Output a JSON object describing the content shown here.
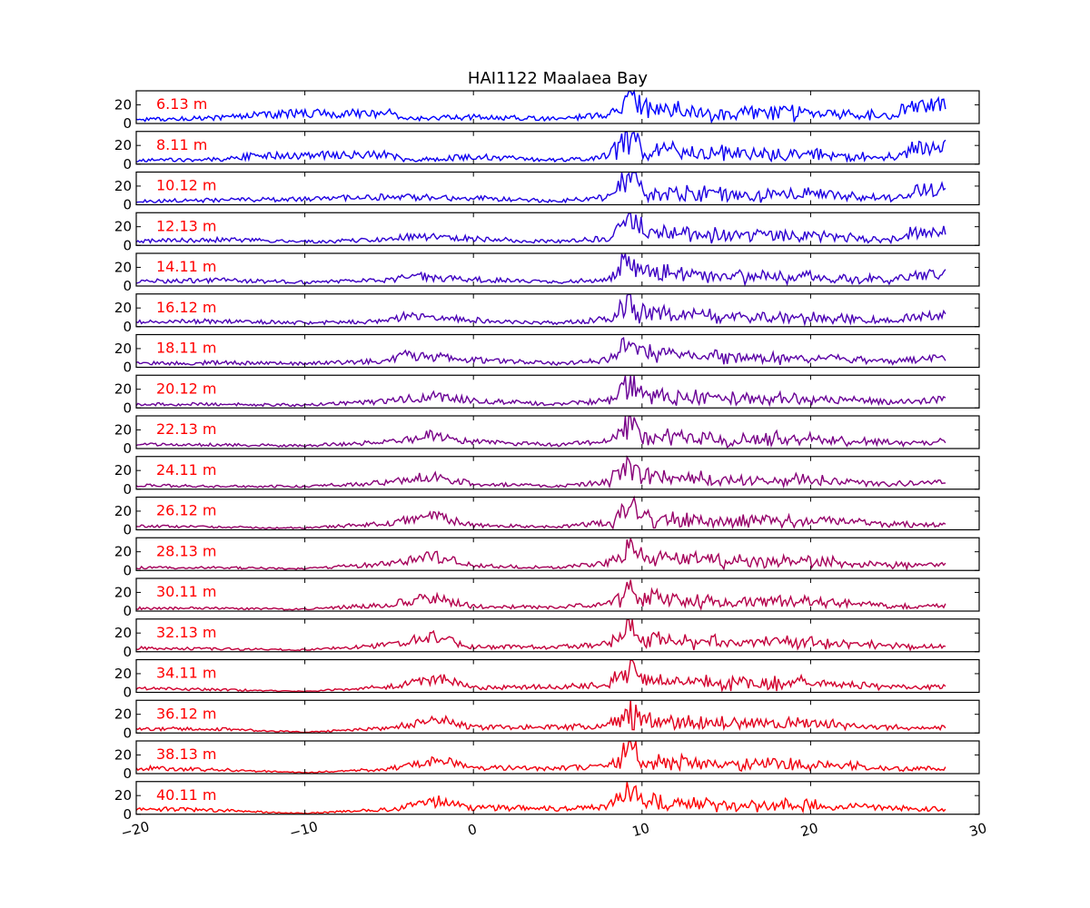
{
  "chart_data": {
    "type": "line",
    "title": "HAI1122   Maalaea Bay",
    "xlabel": "",
    "ylabel": "",
    "xlim": [
      -20,
      30
    ],
    "ylim": [
      0,
      35
    ],
    "x_ticks": [
      -20,
      -10,
      0,
      10,
      20,
      30
    ],
    "x_tick_labels": [
      "−20",
      "−10",
      "0",
      "10",
      "20",
      "30"
    ],
    "y_ticks": [
      0,
      20
    ],
    "y_tick_labels": [
      "0",
      "20"
    ],
    "x_data_range": [
      -20,
      28
    ],
    "grid": false,
    "legend": "none",
    "layout": "18 stacked panels sharing the x axis",
    "series": [
      {
        "name": "6.13 m",
        "color": "#0000ff",
        "x": [
          -20,
          -15,
          -13,
          -5,
          -4,
          0,
          5,
          8,
          9,
          9.3,
          10,
          12,
          15,
          20,
          25,
          26,
          28
        ],
        "values": [
          4,
          6,
          10,
          11,
          5,
          7,
          5,
          9,
          25,
          35,
          16,
          13,
          11,
          11,
          8,
          19,
          21
        ]
      },
      {
        "name": "8.11 m",
        "color": "#0f00f0",
        "x": [
          -20,
          -15,
          -13,
          -5,
          -4,
          0,
          5,
          8,
          9,
          9.3,
          10,
          12,
          15,
          20,
          25,
          26,
          28
        ],
        "values": [
          4,
          5,
          9,
          10,
          4,
          8,
          4,
          9,
          24,
          34,
          16,
          13,
          11,
          11,
          7,
          17,
          19
        ]
      },
      {
        "name": "10.12 m",
        "color": "#1e00e1",
        "x": [
          -20,
          -15,
          -10,
          -5,
          -4,
          0,
          5,
          8,
          9,
          9.3,
          10,
          12,
          15,
          20,
          25,
          26,
          28
        ],
        "values": [
          4,
          5,
          6,
          9,
          8,
          7,
          4,
          8,
          24,
          33,
          15,
          13,
          11,
          11,
          6,
          15,
          17
        ]
      },
      {
        "name": "12.13 m",
        "color": "#2d00d2",
        "x": [
          -20,
          -15,
          -10,
          -5,
          -4,
          0,
          5,
          8,
          9,
          9.3,
          10,
          12,
          15,
          20,
          25,
          26,
          28
        ],
        "values": [
          5,
          6,
          4,
          6,
          10,
          7,
          4,
          8,
          23,
          33,
          15,
          12,
          11,
          10,
          6,
          13,
          15
        ]
      },
      {
        "name": "14.11 m",
        "color": "#3c00c3",
        "x": [
          -20,
          -15,
          -10,
          -5,
          -4,
          0,
          5,
          8,
          9,
          9.3,
          10,
          12,
          15,
          20,
          25,
          26,
          28
        ],
        "values": [
          5,
          6,
          4,
          6,
          11,
          7,
          4,
          8,
          23,
          32,
          15,
          12,
          10,
          10,
          6,
          11,
          13
        ]
      },
      {
        "name": "16.12 m",
        "color": "#4b00b4",
        "x": [
          -20,
          -15,
          -10,
          -5,
          -4,
          0,
          5,
          8,
          9,
          9.3,
          10,
          12,
          15,
          20,
          25,
          26,
          28
        ],
        "values": [
          5,
          6,
          4,
          6,
          13,
          7,
          4,
          8,
          22,
          32,
          15,
          12,
          10,
          10,
          6,
          10,
          12
        ]
      },
      {
        "name": "18.11 m",
        "color": "#5a00a5",
        "x": [
          -20,
          -15,
          -10,
          -5,
          -4,
          0,
          5,
          8,
          9,
          9.3,
          10,
          12,
          15,
          20,
          25,
          26,
          28
        ],
        "values": [
          4,
          5,
          4,
          7,
          14,
          8,
          4,
          8,
          22,
          31,
          15,
          12,
          10,
          10,
          6,
          8,
          10
        ]
      },
      {
        "name": "20.12 m",
        "color": "#690096",
        "x": [
          -20,
          -15,
          -10,
          -5,
          -2.5,
          0,
          5,
          8,
          9,
          9.3,
          10,
          12,
          15,
          20,
          25,
          26,
          28
        ],
        "values": [
          4,
          4,
          3,
          7,
          13,
          8,
          4,
          8,
          22,
          31,
          14,
          12,
          10,
          10,
          6,
          7,
          9
        ]
      },
      {
        "name": "22.13 m",
        "color": "#780087",
        "x": [
          -20,
          -15,
          -10,
          -5,
          -2.5,
          0,
          5,
          8,
          9,
          9.3,
          10,
          12,
          15,
          20,
          25,
          26,
          28
        ],
        "values": [
          4,
          4,
          3,
          7,
          14,
          7,
          4,
          8,
          22,
          30,
          14,
          12,
          10,
          10,
          6,
          6,
          8
        ]
      },
      {
        "name": "24.11 m",
        "color": "#870078",
        "x": [
          -20,
          -15,
          -10,
          -5,
          -2.5,
          0,
          5,
          8,
          9,
          9.3,
          10,
          12,
          15,
          20,
          25,
          26,
          28
        ],
        "values": [
          4,
          3,
          3,
          7,
          14,
          6,
          3,
          8,
          21,
          30,
          14,
          12,
          10,
          10,
          6,
          6,
          7
        ]
      },
      {
        "name": "26.12 m",
        "color": "#960069",
        "x": [
          -20,
          -15,
          -10,
          -5,
          -2.5,
          0,
          5,
          8,
          9,
          9.3,
          10,
          12,
          15,
          20,
          25,
          26,
          28
        ],
        "values": [
          4,
          3,
          2,
          7,
          15,
          5,
          3,
          8,
          21,
          30,
          14,
          12,
          10,
          10,
          6,
          5,
          6
        ]
      },
      {
        "name": "28.13 m",
        "color": "#a5005a",
        "x": [
          -20,
          -15,
          -10,
          -5,
          -2.5,
          0,
          5,
          8,
          9,
          9.3,
          10,
          12,
          15,
          20,
          25,
          26,
          28
        ],
        "values": [
          3,
          3,
          2,
          7,
          16,
          5,
          3,
          8,
          21,
          29,
          14,
          12,
          10,
          10,
          6,
          5,
          6
        ]
      },
      {
        "name": "30.11 m",
        "color": "#b4004b",
        "x": [
          -20,
          -15,
          -10,
          -5,
          -2.5,
          0,
          5,
          8,
          9,
          9.3,
          10,
          12,
          15,
          20,
          25,
          26,
          28
        ],
        "values": [
          3,
          3,
          2,
          7,
          15,
          5,
          4,
          8,
          21,
          29,
          14,
          12,
          10,
          10,
          6,
          5,
          6
        ]
      },
      {
        "name": "32.13 m",
        "color": "#c3003c",
        "x": [
          -20,
          -15,
          -10,
          -5,
          -2.5,
          0,
          5,
          8,
          9,
          9.3,
          10,
          12,
          15,
          20,
          25,
          26,
          28
        ],
        "values": [
          4,
          3,
          2,
          7,
          16,
          5,
          5,
          8,
          20,
          29,
          14,
          12,
          10,
          10,
          6,
          5,
          6
        ]
      },
      {
        "name": "34.11 m",
        "color": "#d2002d",
        "x": [
          -20,
          -15,
          -10,
          -5,
          -2,
          0,
          5,
          8,
          9,
          9.3,
          10,
          12,
          15,
          20,
          25,
          26,
          28
        ],
        "values": [
          4,
          3,
          1,
          6,
          15,
          5,
          6,
          8,
          20,
          28,
          14,
          12,
          10,
          10,
          6,
          5,
          6
        ]
      },
      {
        "name": "36.12 m",
        "color": "#e1001e",
        "x": [
          -20,
          -15,
          -10,
          -5,
          -2,
          0,
          5,
          8,
          9,
          9.3,
          10,
          12,
          15,
          20,
          25,
          26,
          28
        ],
        "values": [
          5,
          4,
          1,
          5,
          15,
          6,
          6,
          8,
          20,
          28,
          14,
          12,
          10,
          10,
          6,
          5,
          6
        ]
      },
      {
        "name": "38.13 m",
        "color": "#f0000f",
        "x": [
          -20,
          -15,
          -10,
          -5,
          -2,
          0,
          5,
          8,
          9,
          9.3,
          10,
          12,
          15,
          20,
          25,
          26,
          28
        ],
        "values": [
          6,
          4,
          1,
          5,
          14,
          6,
          6,
          8,
          20,
          28,
          14,
          12,
          10,
          10,
          6,
          5,
          6
        ]
      },
      {
        "name": "40.11 m",
        "color": "#ff0000",
        "x": [
          -20,
          -15,
          -10,
          -5,
          -2,
          0,
          5,
          8,
          9,
          9.3,
          10,
          12,
          15,
          20,
          25,
          26,
          28
        ],
        "values": [
          6,
          4,
          1,
          5,
          14,
          7,
          6,
          8,
          20,
          28,
          14,
          12,
          10,
          10,
          6,
          5,
          6
        ]
      }
    ]
  }
}
